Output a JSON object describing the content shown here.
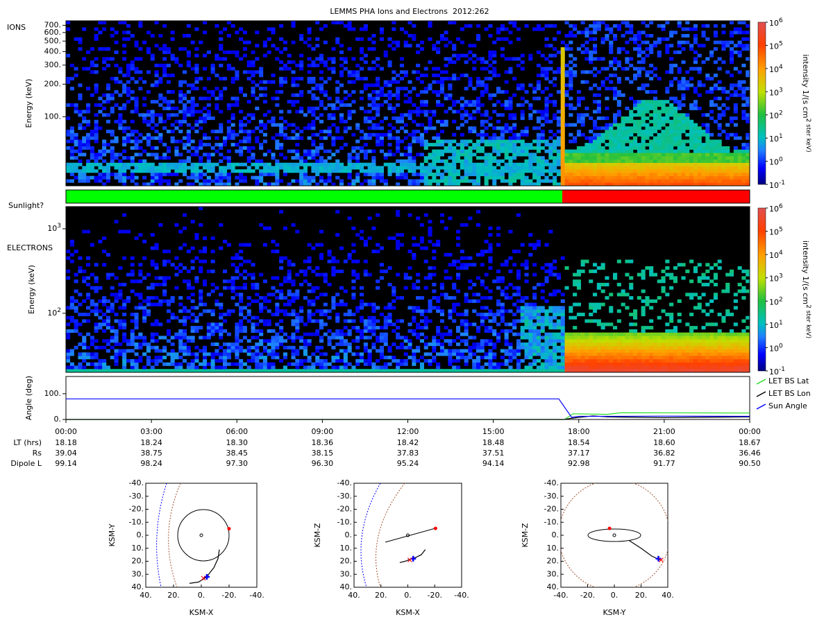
{
  "chart_data": [
    {
      "type": "spectrogram",
      "title": "LEMMS PHA Ions and Electrons  2012:262",
      "label": "IONS",
      "y_label": "Energy (keV)",
      "ylog": true,
      "ylim": [
        23,
        770
      ],
      "yticks": [
        {
          "value": 100,
          "label": "100."
        },
        {
          "value": 200,
          "label": "200."
        },
        {
          "value": 300,
          "label": "300."
        },
        {
          "value": 400,
          "label": "400."
        },
        {
          "value": 500,
          "label": "500."
        },
        {
          "value": 600,
          "label": "600."
        },
        {
          "value": 700,
          "label": "700."
        }
      ],
      "colorbar": {
        "label": "intensity 1/(s cm^2 ster keV)",
        "log": true,
        "lim": [
          0.1,
          1000000
        ],
        "ticks": [
          {
            "value": 0.1,
            "label": "10^-1"
          },
          {
            "value": 1,
            "label": "10^0"
          },
          {
            "value": 10,
            "label": "10^1"
          },
          {
            "value": 100,
            "label": "10^2"
          },
          {
            "value": 1000,
            "label": "10^3"
          },
          {
            "value": 10000,
            "label": "10^4"
          },
          {
            "value": 100000,
            "label": "10^5"
          },
          {
            "value": 1000000,
            "label": "10^6"
          }
        ]
      }
    },
    {
      "type": "timeline",
      "label": "Sunlight?",
      "xlim": [
        0,
        24
      ],
      "segments": [
        {
          "start": 0,
          "end": 17.42,
          "color": "#00ff00"
        },
        {
          "start": 17.42,
          "end": 24,
          "color": "#ff0000"
        }
      ]
    },
    {
      "type": "spectrogram",
      "label": "ELECTRONS",
      "y_label": "Energy (keV)",
      "ylog": true,
      "ylim": [
        20,
        1830
      ],
      "yticks": [
        {
          "value": 100,
          "label": "10^2"
        },
        {
          "value": 1000,
          "label": "10^3"
        }
      ],
      "colorbar": {
        "label": "intensity 1/(s cm^2 ster keV)",
        "log": true,
        "lim": [
          0.1,
          1000000
        ],
        "ticks": [
          {
            "value": 0.1,
            "label": "10^-1"
          },
          {
            "value": 1,
            "label": "10^0"
          },
          {
            "value": 10,
            "label": "10^1"
          },
          {
            "value": 100,
            "label": "10^2"
          },
          {
            "value": 1000,
            "label": "10^3"
          },
          {
            "value": 10000,
            "label": "10^4"
          },
          {
            "value": 100000,
            "label": "10^5"
          },
          {
            "value": 1000000,
            "label": "10^6"
          }
        ]
      }
    },
    {
      "type": "line",
      "y_label": "Angle (deg)",
      "xlim": [
        0,
        24
      ],
      "ylim": [
        0,
        167
      ],
      "yticks": [
        {
          "value": 0,
          "label": "0."
        },
        {
          "value": 100,
          "label": "100."
        }
      ],
      "xticks": [
        {
          "value": 0,
          "label": "00:00"
        },
        {
          "value": 3,
          "label": "03:00"
        },
        {
          "value": 6,
          "label": "06:00"
        },
        {
          "value": 9,
          "label": "09:00"
        },
        {
          "value": 12,
          "label": "12:00"
        },
        {
          "value": 15,
          "label": "15:00"
        },
        {
          "value": 18,
          "label": "18:00"
        },
        {
          "value": 21,
          "label": "21:00"
        },
        {
          "value": 24,
          "label": "00:00"
        }
      ],
      "legend": "right",
      "series": [
        {
          "name": "LET BS Lat",
          "color": "#22dd22",
          "x": [
            0,
            17.5,
            17.8,
            19,
            19.5,
            24
          ],
          "values": [
            0,
            0,
            22,
            20,
            26,
            25
          ]
        },
        {
          "name": "LET BS Lon",
          "color": "#000000",
          "x": [
            0,
            17.5,
            17.7,
            18.5,
            19,
            21,
            24
          ],
          "values": [
            0,
            0,
            4,
            14,
            10,
            7,
            10
          ]
        },
        {
          "name": "Sun Angle",
          "color": "#0000ff",
          "x": [
            0,
            17.3,
            17.75,
            18,
            19,
            21,
            24
          ],
          "values": [
            80,
            80,
            8,
            12,
            12,
            13,
            12
          ]
        }
      ]
    },
    {
      "type": "orbit",
      "x_label": "KSM-X",
      "y_label": "KSM-Y",
      "xlim": [
        40,
        -40
      ],
      "ylim": [
        40,
        -40
      ],
      "xticks": [
        {
          "value": 40,
          "label": "40."
        },
        {
          "value": 20,
          "label": "20."
        },
        {
          "value": 0,
          "label": "0."
        },
        {
          "value": -20,
          "label": "-20."
        },
        {
          "value": -40,
          "label": "-40."
        }
      ],
      "yticks": [
        {
          "value": -40,
          "label": "-40."
        },
        {
          "value": -30,
          "label": "-30."
        },
        {
          "value": -20,
          "label": "-20."
        },
        {
          "value": -10,
          "label": "-10."
        },
        {
          "value": 0,
          "label": "0."
        },
        {
          "value": 10,
          "label": "10."
        },
        {
          "value": 20,
          "label": "20."
        },
        {
          "value": 30,
          "label": "30."
        },
        {
          "value": 40,
          "label": "40."
        }
      ],
      "trajectory": {
        "color": "#000000",
        "x": [
          -13,
          -12,
          -9,
          -6,
          -4,
          2,
          8.5
        ],
        "y": [
          11,
          18,
          25,
          29,
          32,
          36,
          37
        ]
      },
      "markers": [
        {
          "symbol": "dot",
          "color": "#ff0000",
          "x": -20,
          "y": -5
        },
        {
          "symbol": "cross",
          "color": "#0000ff",
          "x": -4,
          "y": 32
        },
        {
          "symbol": "x",
          "color": "#ff0000",
          "x": -1.5,
          "y": 33
        }
      ]
    },
    {
      "type": "orbit",
      "x_label": "KSM-X",
      "y_label": "KSM-Z",
      "xlim": [
        40,
        -40
      ],
      "ylim": [
        40,
        -40
      ],
      "xticks": [
        {
          "value": 40,
          "label": "40."
        },
        {
          "value": 20,
          "label": "20."
        },
        {
          "value": 0,
          "label": "0."
        },
        {
          "value": -20,
          "label": "-20."
        },
        {
          "value": -40,
          "label": "-40."
        }
      ],
      "yticks": [
        {
          "value": -40,
          "label": "-40."
        },
        {
          "value": -30,
          "label": "-30."
        },
        {
          "value": -20,
          "label": "-20."
        },
        {
          "value": -10,
          "label": "-10."
        },
        {
          "value": 0,
          "label": "0."
        },
        {
          "value": 10,
          "label": "10."
        },
        {
          "value": 20,
          "label": "20."
        },
        {
          "value": 30,
          "label": "30."
        },
        {
          "value": 40,
          "label": "40."
        }
      ],
      "trajectory": {
        "color": "#000000",
        "x": [
          -13,
          -10,
          -6,
          -3,
          2,
          6
        ],
        "y": [
          11,
          15,
          17,
          18,
          20,
          21
        ]
      },
      "markers": [
        {
          "symbol": "dot",
          "color": "#ff0000",
          "x": -20.6,
          "y": -5.3
        },
        {
          "symbol": "cross",
          "color": "#0000ff",
          "x": -4,
          "y": 18
        },
        {
          "symbol": "x",
          "color": "#ff0000",
          "x": -1.5,
          "y": 19
        }
      ]
    },
    {
      "type": "orbit",
      "x_label": "KSM-Y",
      "y_label": "KSM-Z",
      "xlim": [
        -40,
        40
      ],
      "ylim": [
        40,
        -40
      ],
      "xticks": [
        {
          "value": -40,
          "label": "-40."
        },
        {
          "value": -20,
          "label": "-20."
        },
        {
          "value": 0,
          "label": "0."
        },
        {
          "value": 20,
          "label": "20."
        },
        {
          "value": 40,
          "label": "40."
        }
      ],
      "yticks": [
        {
          "value": -40,
          "label": "-40."
        },
        {
          "value": -30,
          "label": "-30."
        },
        {
          "value": -20,
          "label": "-20."
        },
        {
          "value": -10,
          "label": "-10."
        },
        {
          "value": 0,
          "label": "0."
        },
        {
          "value": 10,
          "label": "10."
        },
        {
          "value": 20,
          "label": "20."
        },
        {
          "value": 30,
          "label": "30."
        },
        {
          "value": 40,
          "label": "40."
        }
      ],
      "trajectory": {
        "color": "#000000",
        "x": [
          11,
          20,
          28,
          34
        ],
        "y": [
          4,
          10,
          16,
          19
        ]
      },
      "markers": [
        {
          "symbol": "dot",
          "color": "#ff0000",
          "x": -3.6,
          "y": -5.3
        },
        {
          "symbol": "cross",
          "color": "#0000ff",
          "x": 33,
          "y": 18
        },
        {
          "symbol": "x",
          "color": "#ff0000",
          "x": 35,
          "y": 19
        }
      ]
    }
  ],
  "ephemeris": {
    "rows": [
      {
        "label": "LT (hrs)",
        "values": [
          "18.18",
          "18.24",
          "18.30",
          "18.36",
          "18.42",
          "18.48",
          "18.54",
          "18.60",
          "18.67"
        ]
      },
      {
        "label": "Rs",
        "values": [
          "39.04",
          "38.75",
          "38.45",
          "38.15",
          "37.83",
          "37.51",
          "37.17",
          "36.82",
          "36.46"
        ]
      },
      {
        "label": "Dipole L",
        "values": [
          "99.14",
          "98.24",
          "97.30",
          "96.30",
          "95.24",
          "94.14",
          "92.98",
          "91.77",
          "90.50"
        ]
      }
    ]
  }
}
